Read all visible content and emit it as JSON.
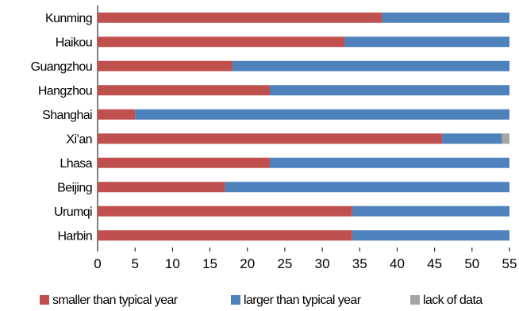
{
  "chart_data": {
    "type": "bar",
    "orientation": "horizontal",
    "stacked": true,
    "title": "",
    "xlabel": "",
    "ylabel": "",
    "categories": [
      "Kunming",
      "Haikou",
      "Guangzhou",
      "Hangzhou",
      "Shanghai",
      "Xi’an",
      "Lhasa",
      "Beijing",
      "Urumqi",
      "Harbin"
    ],
    "series": [
      {
        "name": "smaller than typical year",
        "color": "#c0504d",
        "values": [
          38,
          33,
          18,
          23,
          5,
          46,
          23,
          17,
          34,
          34
        ]
      },
      {
        "name": "larger than typical year",
        "color": "#4f81bd",
        "values": [
          17,
          22,
          37,
          32,
          50,
          8,
          32,
          38,
          21,
          21
        ]
      },
      {
        "name": "lack of data",
        "color": "#a5a5a5",
        "values": [
          0,
          0,
          0,
          0,
          0,
          1,
          0,
          0,
          0,
          0
        ]
      }
    ],
    "xlim": [
      0,
      55
    ],
    "xticks": [
      "0",
      "5",
      "10",
      "15",
      "20",
      "25",
      "30",
      "35",
      "40",
      "45",
      "50",
      "55"
    ],
    "grid": false,
    "legend_position": "bottom"
  }
}
